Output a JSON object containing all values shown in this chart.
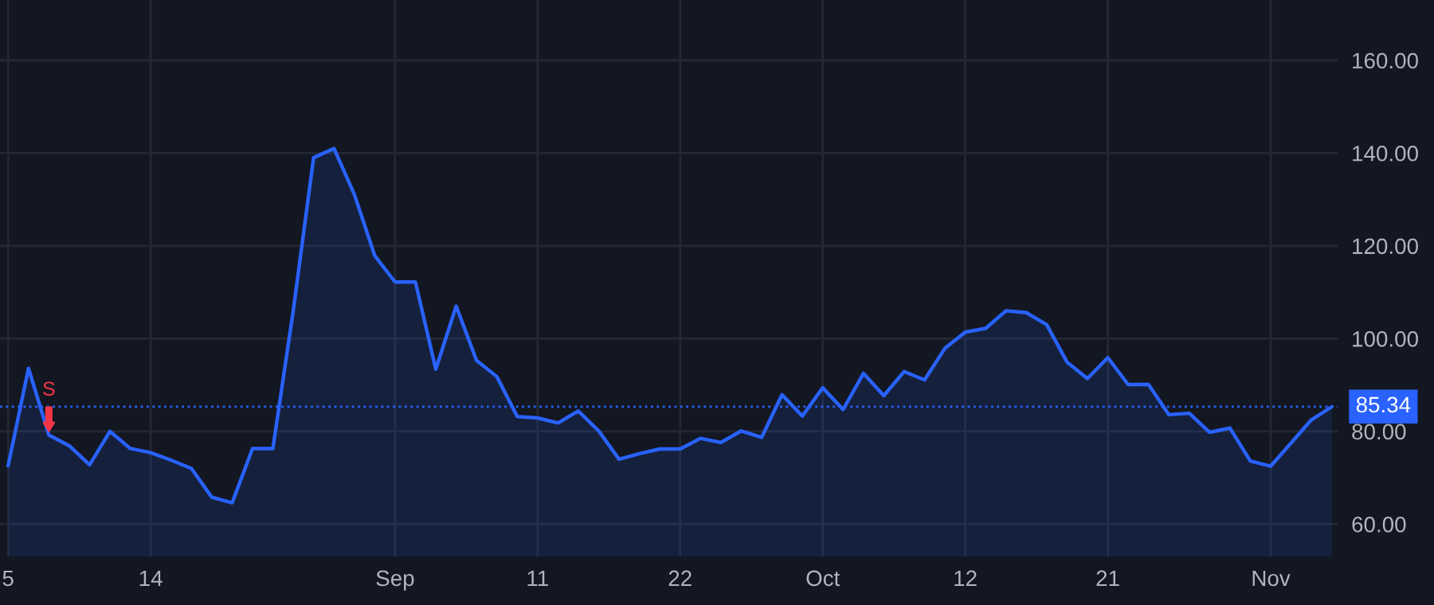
{
  "chart_data": {
    "type": "area",
    "series": [
      {
        "color": "#2962ff",
        "values": [
          72.6,
          93.6,
          79.2,
          76.9,
          72.8,
          80.0,
          76.3,
          75.4,
          73.8,
          72.0,
          65.8,
          64.6,
          76.3,
          76.3,
          106,
          139,
          141,
          131.1,
          117.9,
          112.2,
          112.2,
          93.4,
          107.0,
          95.3,
          91.8,
          83.2,
          82.9,
          81.8,
          84.4,
          80.1,
          74.0,
          75.2,
          76.2,
          76.2,
          78.5,
          77.6,
          80.1,
          78.7,
          87.9,
          83.3,
          89.4,
          84.7,
          92.5,
          87.7,
          92.9,
          91.1,
          97.9,
          101.4,
          102.2,
          106.0,
          105.6,
          103.0,
          94.9,
          91.4,
          95.9,
          90.1,
          90.1,
          83.6,
          83.9,
          79.8,
          80.7,
          73.6,
          72.5,
          77.5,
          82.5,
          85.3
        ]
      }
    ],
    "categories": [
      "5",
      null,
      null,
      null,
      null,
      null,
      null,
      "14",
      null,
      null,
      null,
      null,
      null,
      null,
      null,
      null,
      null,
      null,
      null,
      "Sep",
      null,
      null,
      null,
      null,
      null,
      null,
      "11",
      null,
      null,
      null,
      null,
      null,
      null,
      "22",
      null,
      null,
      null,
      null,
      null,
      null,
      "Oct",
      null,
      null,
      null,
      null,
      null,
      null,
      "12",
      null,
      null,
      null,
      null,
      null,
      null,
      "21",
      null,
      null,
      null,
      null,
      null,
      null,
      null,
      "Nov",
      null,
      null,
      null
    ],
    "ylim": [
      53,
      173
    ],
    "yticks": [
      {
        "value": 60,
        "label": "60.00"
      },
      {
        "value": 80,
        "label": "80.00"
      },
      {
        "value": 100,
        "label": "100.00"
      },
      {
        "value": 120,
        "label": "120.00"
      },
      {
        "value": 140,
        "label": "140.00"
      },
      {
        "value": 160,
        "label": "160.00"
      }
    ],
    "ref_lines": [
      {
        "axis": "y",
        "value": 85.34,
        "label": "85.34",
        "color": "#2962ff",
        "line_style": "dotted"
      }
    ],
    "annotations": [
      {
        "text": "S",
        "y": 79.2
      }
    ],
    "grid": true,
    "legend": false
  }
}
